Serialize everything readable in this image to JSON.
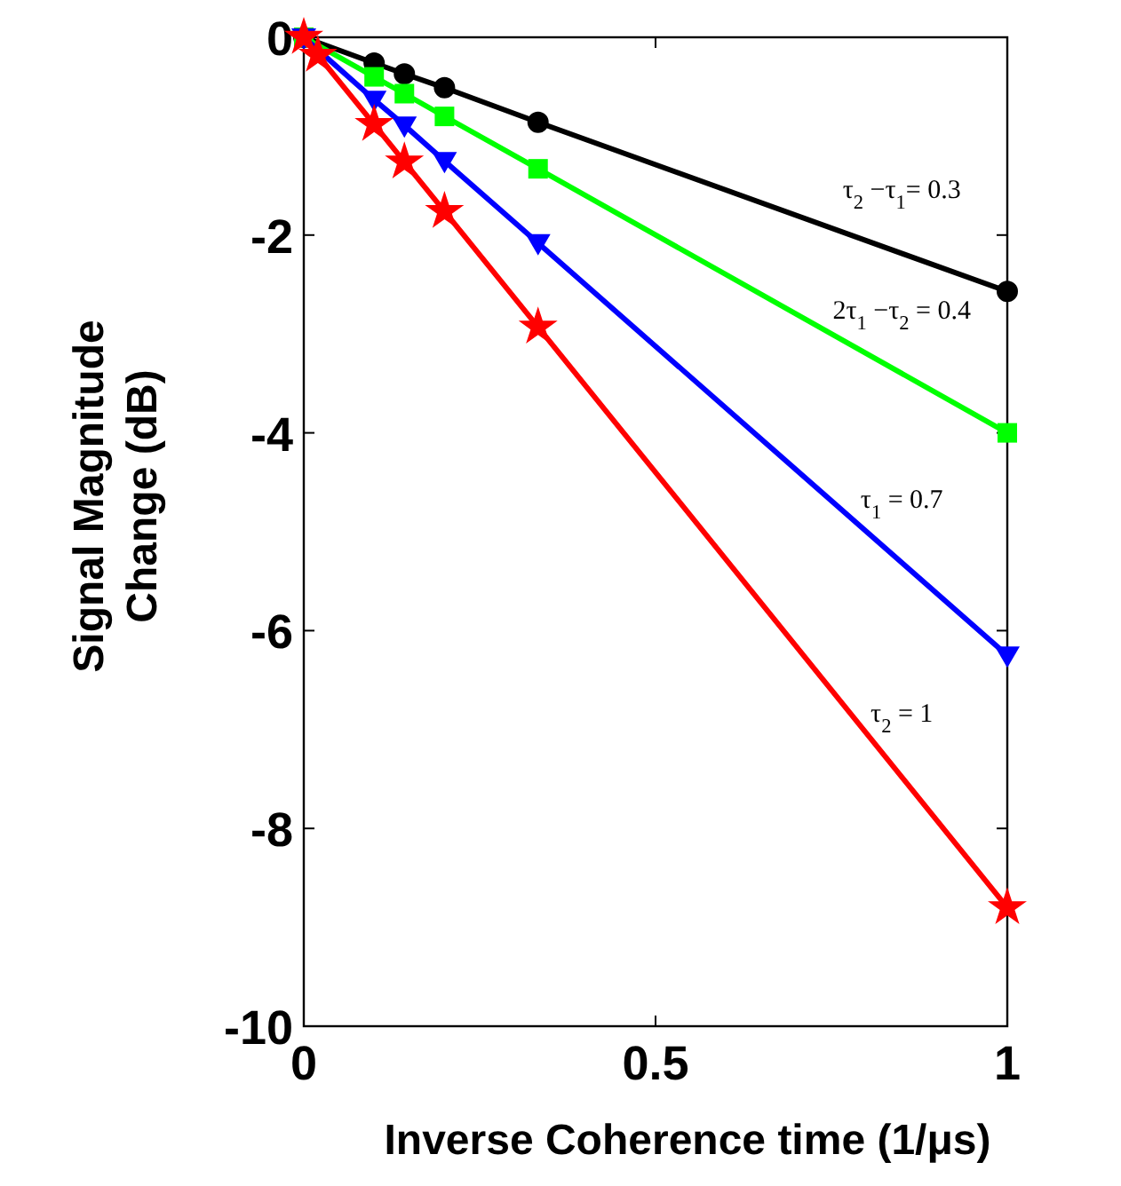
{
  "chart_data": {
    "type": "line",
    "xlabel": "Inverse Coherence time (1/μs)",
    "ylabel": "Signal Magnitude Change (dB)",
    "x": [
      0,
      0.02,
      0.1,
      0.143,
      0.2,
      0.333,
      1
    ],
    "xlim": [
      0,
      1
    ],
    "xticks": [
      0,
      0.5,
      1
    ],
    "ylim": [
      -10,
      0
    ],
    "yticks": [
      -10,
      -8,
      -6,
      -4,
      -2,
      0
    ],
    "grid": false,
    "line_style": "solid",
    "series": [
      {
        "color": "#000000",
        "marker": "circle",
        "values": [
          0,
          null,
          -0.26,
          -0.37,
          -0.51,
          -0.86,
          -2.57
        ]
      },
      {
        "color": "#00ff00",
        "marker": "square",
        "values": [
          0,
          null,
          -0.4,
          -0.57,
          -0.8,
          -1.33,
          -4.0
        ]
      },
      {
        "color": "#0000ff",
        "marker": "triangle",
        "values": [
          0,
          null,
          -0.63,
          -0.89,
          -1.25,
          -2.08,
          -6.25
        ]
      },
      {
        "color": "#ff0000",
        "marker": "star",
        "values": [
          0,
          -0.18,
          -0.88,
          -1.26,
          -1.76,
          -2.93,
          -8.8
        ]
      }
    ],
    "annotations": [
      "τ$_{2}$ −τ$_{1}$= 0.3",
      "2τ$_{1}$ −τ$_{2}$ = 0.4",
      "τ$_{1}$ = 0.7",
      "τ$_{2}$ = 1"
    ]
  }
}
